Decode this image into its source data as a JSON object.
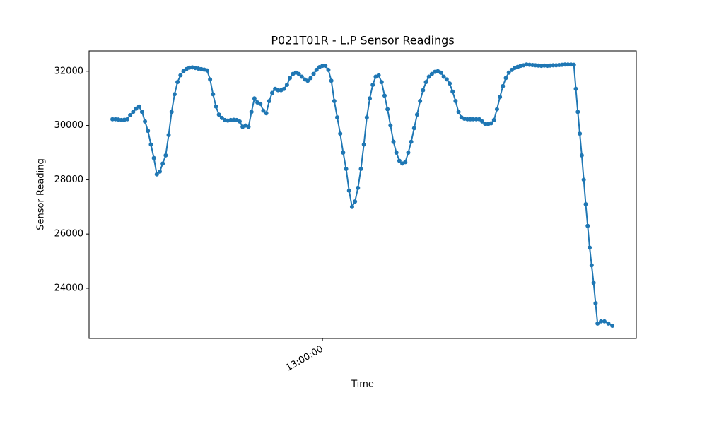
{
  "chart_data": {
    "type": "line",
    "title": "P021T01R - L.P Sensor Readings",
    "x_label": "Time",
    "y_label": "Sensor Reading",
    "x": [
      "11:49:00",
      "11:50:00",
      "11:51:00",
      "11:52:00",
      "11:53:00",
      "11:54:00",
      "11:55:00",
      "11:56:00",
      "11:57:00",
      "11:58:00",
      "11:59:00",
      "12:00:00",
      "12:01:00",
      "12:02:00",
      "12:03:00",
      "12:04:00",
      "12:05:00",
      "12:06:00",
      "12:07:00",
      "12:08:00",
      "12:09:00",
      "12:10:00",
      "12:11:00",
      "12:12:00",
      "12:13:00",
      "12:14:00",
      "12:15:00",
      "12:16:00",
      "12:17:00",
      "12:18:00",
      "12:19:00",
      "12:20:00",
      "12:21:00",
      "12:22:00",
      "12:23:00",
      "12:24:00",
      "12:25:00",
      "12:26:00",
      "12:27:00",
      "12:28:00",
      "12:29:00",
      "12:30:00",
      "12:31:00",
      "12:32:00",
      "12:33:00",
      "12:34:00",
      "12:35:00",
      "12:36:00",
      "12:37:00",
      "12:38:00",
      "12:39:00",
      "12:40:00",
      "12:41:00",
      "12:42:00",
      "12:43:00",
      "12:44:00",
      "12:45:00",
      "12:46:00",
      "12:47:00",
      "12:48:00",
      "12:49:00",
      "12:50:00",
      "12:51:00",
      "12:52:00",
      "12:53:00",
      "12:54:00",
      "12:55:00",
      "12:56:00",
      "12:57:00",
      "12:58:00",
      "12:59:00",
      "13:00:00",
      "13:01:00",
      "13:02:00",
      "13:03:00",
      "13:04:00",
      "13:05:00",
      "13:06:00",
      "13:07:00",
      "13:08:00",
      "13:09:00",
      "13:10:00",
      "13:11:00",
      "13:12:00",
      "13:13:00",
      "13:14:00",
      "13:15:00",
      "13:16:00",
      "13:17:00",
      "13:18:00",
      "13:19:00",
      "13:20:00",
      "13:21:00",
      "13:22:00",
      "13:23:00",
      "13:24:00",
      "13:25:00",
      "13:26:00",
      "13:27:00",
      "13:28:00",
      "13:29:00",
      "13:30:00",
      "13:31:00",
      "13:32:00",
      "13:33:00",
      "13:34:00",
      "13:35:00",
      "13:36:00",
      "13:37:00",
      "13:38:00",
      "13:39:00",
      "13:40:00",
      "13:41:00",
      "13:42:00",
      "13:43:00",
      "13:44:00",
      "13:45:00",
      "13:46:00",
      "13:47:00",
      "13:48:00",
      "13:49:00",
      "13:50:00",
      "13:51:00",
      "13:52:00",
      "13:53:00",
      "13:54:00",
      "13:55:00",
      "13:56:00",
      "13:57:00",
      "13:58:00",
      "13:59:00",
      "14:00:00",
      "14:01:00",
      "14:02:00",
      "14:03:00",
      "14:04:00",
      "14:05:00",
      "14:06:00",
      "14:07:00",
      "14:08:00",
      "14:09:00",
      "14:10:00",
      "14:11:00",
      "14:12:00",
      "14:13:00",
      "14:14:00",
      "14:15:00",
      "14:16:00",
      "14:17:00",
      "14:18:00",
      "14:19:00",
      "14:20:00",
      "14:21:00",
      "14:22:00",
      "14:23:00",
      "14:24:00",
      "14:25:00",
      "14:25:40",
      "14:26:20",
      "14:27:00",
      "14:27:40",
      "14:28:20",
      "14:29:00",
      "14:29:40",
      "14:30:20",
      "14:31:00",
      "14:31:40",
      "14:32:20",
      "14:33:00",
      "14:34:10",
      "14:35:20",
      "14:36:40",
      "14:38:00"
    ],
    "series": [
      {
        "name": "L.P",
        "color": "#1f77b4",
        "values": [
          30230,
          30230,
          30220,
          30200,
          30210,
          30230,
          30380,
          30500,
          30620,
          30700,
          30500,
          30150,
          29800,
          29300,
          28800,
          28200,
          28300,
          28600,
          28900,
          29650,
          30500,
          31150,
          31600,
          31850,
          32000,
          32080,
          32130,
          32140,
          32120,
          32100,
          32080,
          32060,
          32030,
          31700,
          31150,
          30700,
          30400,
          30280,
          30200,
          30180,
          30200,
          30210,
          30200,
          30150,
          29950,
          30000,
          29950,
          30500,
          31000,
          30850,
          30800,
          30550,
          30450,
          30900,
          31200,
          31350,
          31300,
          31300,
          31350,
          31500,
          31750,
          31900,
          31950,
          31900,
          31800,
          31700,
          31650,
          31750,
          31900,
          32050,
          32150,
          32200,
          32200,
          32050,
          31650,
          30900,
          30300,
          29700,
          29000,
          28400,
          27600,
          27000,
          27200,
          27700,
          28400,
          29300,
          30300,
          31000,
          31500,
          31800,
          31850,
          31600,
          31100,
          30600,
          30000,
          29400,
          29000,
          28700,
          28600,
          28650,
          29000,
          29400,
          29900,
          30400,
          30900,
          31300,
          31600,
          31800,
          31900,
          31980,
          32000,
          31950,
          31800,
          31700,
          31550,
          31250,
          30900,
          30500,
          30300,
          30250,
          30230,
          30230,
          30230,
          30230,
          30230,
          30150,
          30060,
          30050,
          30080,
          30200,
          30600,
          31050,
          31450,
          31750,
          31950,
          32050,
          32120,
          32160,
          32200,
          32220,
          32250,
          32240,
          32230,
          32220,
          32210,
          32200,
          32210,
          32200,
          32210,
          32220,
          32220,
          32230,
          32240,
          32250,
          32250,
          32250,
          32240,
          31350,
          30500,
          29700,
          28900,
          28000,
          27100,
          26300,
          25500,
          24850,
          24200,
          23450,
          22700,
          22780,
          22780,
          22700,
          22620
        ]
      }
    ],
    "xlim": [
      "11:41:06",
      "14:46:06"
    ],
    "xticks": [
      "13:00:00"
    ],
    "ylim": [
      22150,
      32750
    ],
    "yticks": [
      24000,
      26000,
      28000,
      30000,
      32000
    ],
    "grid": false,
    "markers": true
  }
}
